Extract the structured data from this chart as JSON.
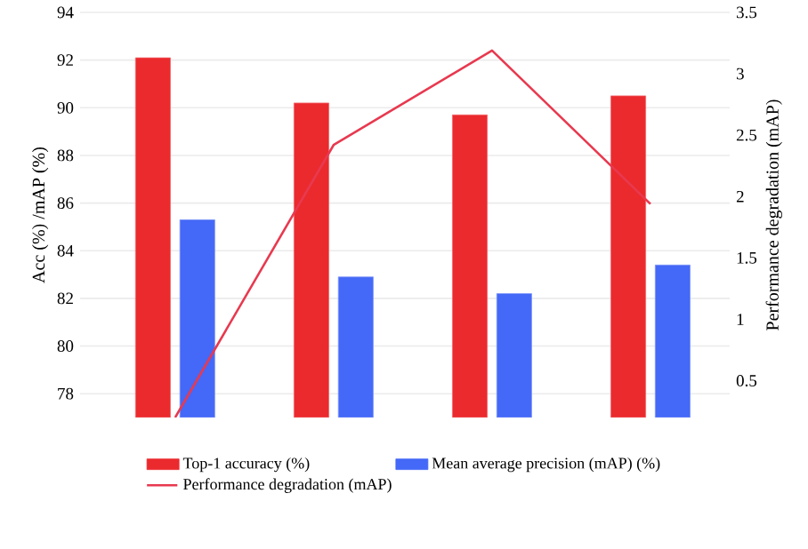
{
  "chart_data": {
    "type": "bar",
    "ylabel": "Acc (%) /mAP (%)",
    "y2label": "Performance degradation (mAP)",
    "categories": [
      null,
      null,
      null,
      null
    ],
    "series": [
      {
        "name": "Top-1 accuracy (%)",
        "color": "#eb2a2e",
        "values": [
          92.1,
          90.2,
          89.7,
          90.5
        ]
      },
      {
        "name": "Mean average precision (mAP) (%)",
        "color": "#4468f7",
        "values": [
          85.3,
          82.9,
          82.2,
          83.4
        ]
      },
      {
        "name": "Performance degradation (mAP)",
        "type": "line",
        "axis": "y2",
        "color": "#e8394f",
        "values": [
          0.2,
          2.42,
          3.19,
          1.94
        ]
      }
    ],
    "ylim": [
      77,
      94
    ],
    "yticks": [
      78,
      80,
      82,
      84,
      86,
      88,
      90,
      92,
      94
    ],
    "y2lim": [
      0.2,
      3.5
    ],
    "y2ticks": [
      0.5,
      1,
      1.5,
      2,
      2.5,
      3,
      3.5
    ],
    "grid": "y",
    "legend": "bottom"
  }
}
